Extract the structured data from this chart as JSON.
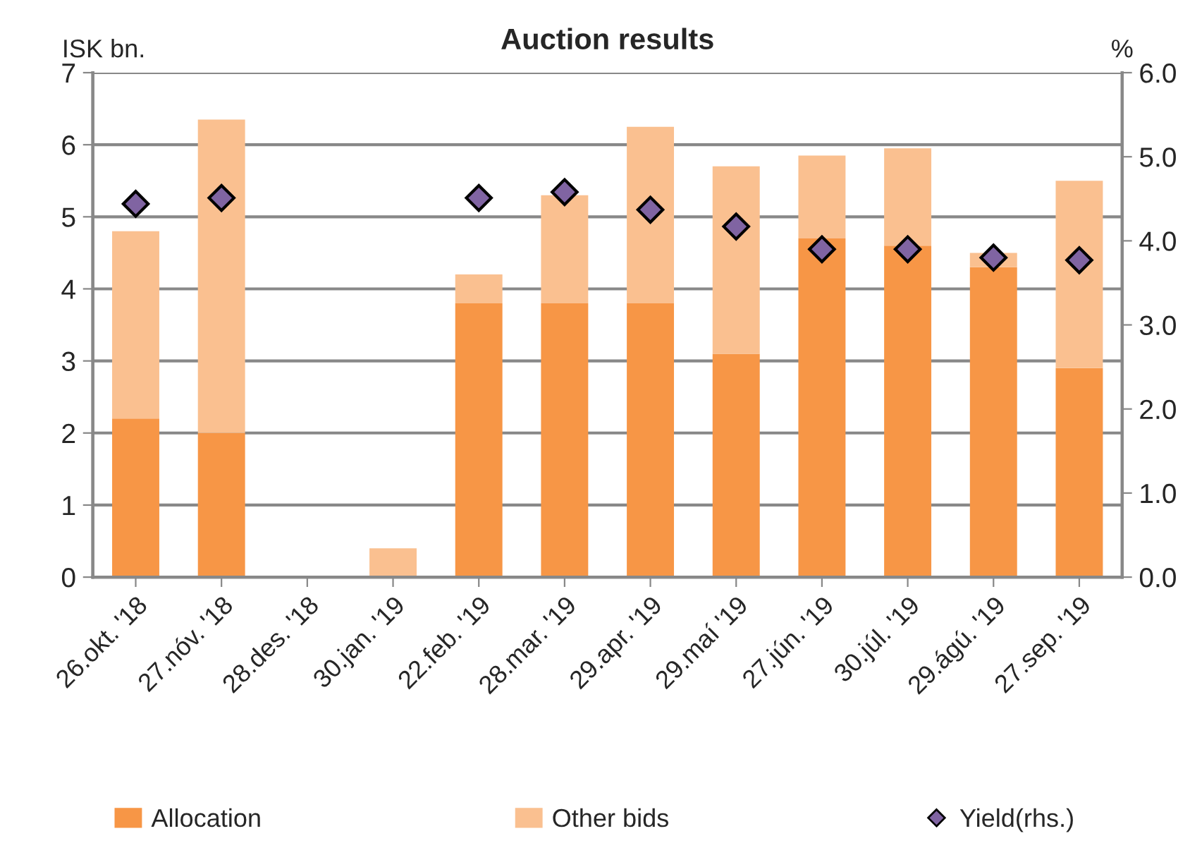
{
  "chart_data": {
    "type": "bar",
    "title": "Auction results",
    "ylabel": "ISK bn.",
    "y2label": "%",
    "categories": [
      "26.okt. '18",
      "27.nóv. '18",
      "28.des. '18",
      "30.jan. '19",
      "22.feb. '19",
      "28.mar. '19",
      "29.apr. '19",
      "29.maí '19",
      "27.jún. '19",
      "30.júl. '19",
      "29.ágú. '19",
      "27.sep. '19"
    ],
    "stacked": true,
    "series": [
      {
        "name": "Allocation",
        "color": "#f79646",
        "values": [
          2.2,
          2.0,
          null,
          null,
          3.8,
          3.8,
          3.8,
          3.1,
          4.7,
          4.6,
          4.3,
          2.9
        ]
      },
      {
        "name": "Other bids",
        "color": "#fac090",
        "values": [
          2.6,
          4.35,
          null,
          0.4,
          0.4,
          1.5,
          2.45,
          2.6,
          1.15,
          1.35,
          0.2,
          2.6
        ]
      },
      {
        "name": "Yield(rhs.)",
        "type": "scatter",
        "axis": "y2",
        "color": "#8064a2",
        "marker": "diamond",
        "values": [
          4.44,
          4.51,
          null,
          null,
          4.51,
          4.58,
          4.37,
          4.17,
          3.9,
          3.9,
          3.8,
          3.77
        ]
      }
    ],
    "ylim": [
      0,
      7
    ],
    "yticks": [
      0,
      1,
      2,
      3,
      4,
      5,
      6,
      7
    ],
    "y2lim": [
      0,
      6
    ],
    "y2ticks": [
      {
        "value": 0,
        "label": "0.0"
      },
      {
        "value": 1,
        "label": "1.0"
      },
      {
        "value": 2,
        "label": "2.0"
      },
      {
        "value": 3,
        "label": "3.0"
      },
      {
        "value": 4,
        "label": "4.0"
      },
      {
        "value": 5,
        "label": "5.0"
      },
      {
        "value": 6,
        "label": "6.0"
      }
    ],
    "grid": "y",
    "legend": "bottom"
  }
}
